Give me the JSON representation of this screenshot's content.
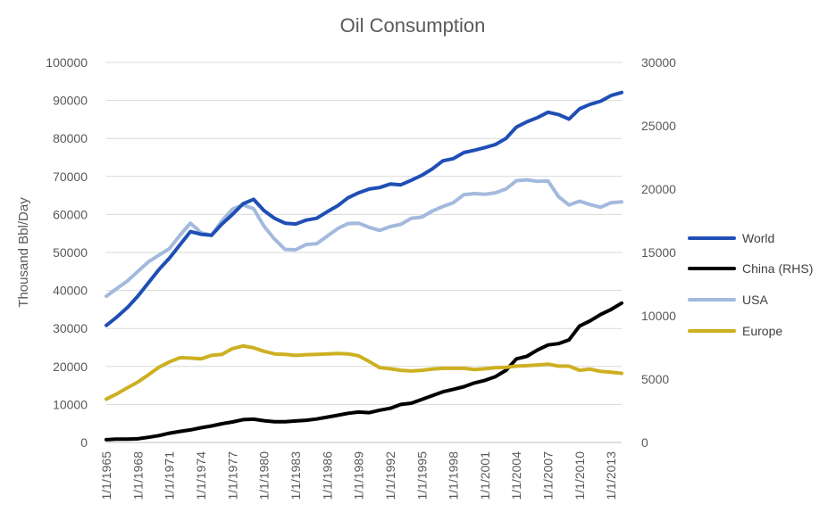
{
  "chart_data": {
    "type": "line",
    "title": "Oil Consumption",
    "ylabel": "Thousand Bbl/Day",
    "y2label": "",
    "ylim": [
      0,
      100000
    ],
    "y2lim": [
      0,
      30000
    ],
    "yticks": [
      "0",
      "10000",
      "20000",
      "30000",
      "40000",
      "50000",
      "60000",
      "70000",
      "80000",
      "90000",
      "100000"
    ],
    "y2ticks": [
      "0",
      "5000",
      "10000",
      "15000",
      "20000",
      "25000",
      "30000"
    ],
    "x": [
      "1/1/1965",
      "1/1/1966",
      "1/1/1967",
      "1/1/1968",
      "1/1/1969",
      "1/1/1970",
      "1/1/1971",
      "1/1/1972",
      "1/1/1973",
      "1/1/1974",
      "1/1/1975",
      "1/1/1976",
      "1/1/1977",
      "1/1/1978",
      "1/1/1979",
      "1/1/1980",
      "1/1/1981",
      "1/1/1982",
      "1/1/1983",
      "1/1/1984",
      "1/1/1985",
      "1/1/1986",
      "1/1/1987",
      "1/1/1988",
      "1/1/1989",
      "1/1/1990",
      "1/1/1991",
      "1/1/1992",
      "1/1/1993",
      "1/1/1994",
      "1/1/1995",
      "1/1/1996",
      "1/1/1997",
      "1/1/1998",
      "1/1/1999",
      "1/1/2000",
      "1/1/2001",
      "1/1/2002",
      "1/1/2003",
      "1/1/2004",
      "1/1/2005",
      "1/1/2006",
      "1/1/2007",
      "1/1/2008",
      "1/1/2009",
      "1/1/2010",
      "1/1/2011",
      "1/1/2012",
      "1/1/2013",
      "1/1/2014"
    ],
    "xticks": [
      "1/1/1965",
      "1/1/1968",
      "1/1/1971",
      "1/1/1974",
      "1/1/1977",
      "1/1/1980",
      "1/1/1983",
      "1/1/1986",
      "1/1/1989",
      "1/1/1992",
      "1/1/1995",
      "1/1/1998",
      "1/1/2001",
      "1/1/2004",
      "1/1/2007",
      "1/1/2010",
      "1/1/2013"
    ],
    "grid": true,
    "legend_position": "right",
    "series": [
      {
        "name": "World",
        "axis": "left",
        "color": "#1f4fb5",
        "values": [
          30800,
          33000,
          35500,
          38500,
          42000,
          45500,
          48500,
          52000,
          55500,
          54800,
          54500,
          57500,
          60000,
          62800,
          64000,
          61000,
          59000,
          57700,
          57500,
          58500,
          59000,
          60700,
          62300,
          64400,
          65700,
          66700,
          67100,
          68000,
          67800,
          69000,
          70300,
          72000,
          74100,
          74700,
          76300,
          76900,
          77600,
          78400,
          80000,
          83000,
          84400,
          85500,
          86900,
          86300,
          85100,
          87800,
          89000,
          89800,
          91300,
          92100
        ]
      },
      {
        "name": "China (RHS)",
        "axis": "right",
        "color": "#000000",
        "values": [
          220,
          270,
          270,
          290,
          410,
          540,
          730,
          870,
          990,
          1160,
          1300,
          1480,
          1620,
          1800,
          1840,
          1720,
          1640,
          1640,
          1700,
          1750,
          1850,
          2000,
          2150,
          2300,
          2400,
          2350,
          2550,
          2700,
          3000,
          3100,
          3400,
          3700,
          4000,
          4200,
          4400,
          4700,
          4900,
          5200,
          5700,
          6600,
          6800,
          7300,
          7700,
          7800,
          8100,
          9200,
          9600,
          10100,
          10500,
          11000
        ]
      },
      {
        "name": "USA",
        "axis": "left",
        "color": "#a3b9dd",
        "values": [
          38500,
          40500,
          42500,
          45000,
          47500,
          49300,
          51000,
          54500,
          57700,
          55200,
          54500,
          58300,
          61400,
          62500,
          61500,
          56900,
          53500,
          50800,
          50700,
          52100,
          52300,
          54300,
          56300,
          57600,
          57700,
          56600,
          55800,
          56800,
          57400,
          59000,
          59300,
          60900,
          62100,
          63100,
          65200,
          65500,
          65300,
          65700,
          66700,
          68900,
          69100,
          68700,
          68800,
          64700,
          62500,
          63500,
          62600,
          61900,
          63100,
          63300
        ]
      },
      {
        "name": "Europe",
        "axis": "left",
        "color": "#cdb022",
        "values": [
          11400,
          12800,
          14400,
          15900,
          17800,
          19800,
          21200,
          22300,
          22200,
          22000,
          22900,
          23200,
          24700,
          25400,
          24900,
          24000,
          23300,
          23200,
          22900,
          23100,
          23200,
          23300,
          23400,
          23300,
          22800,
          21300,
          19700,
          19400,
          19000,
          18800,
          19000,
          19300,
          19500,
          19500,
          19500,
          19200,
          19400,
          19700,
          19800,
          20100,
          20200,
          20400,
          20600,
          20100,
          20100,
          19000,
          19300,
          18700,
          18500,
          18200
        ]
      }
    ]
  }
}
